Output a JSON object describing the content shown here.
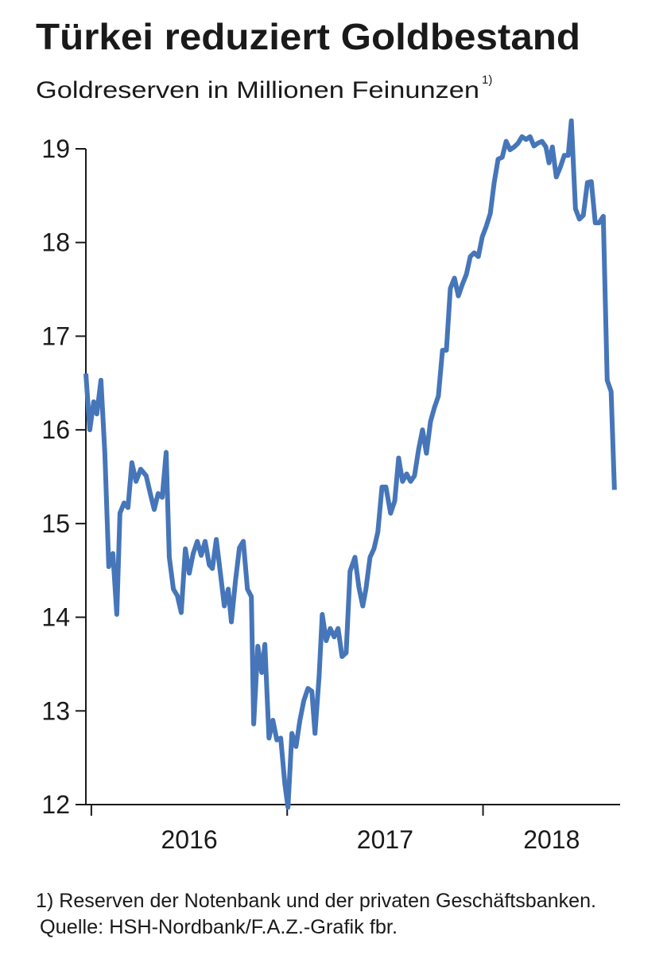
{
  "chart_data": {
    "type": "line",
    "title": "Türkei reduziert Goldbestand",
    "subtitle": "Goldreserven in Millionen Feinunzen",
    "subtitle_note": "1)",
    "footnote": "1) Reserven der Notenbank und der privaten Geschäftsbanken.",
    "source": "Quelle: HSH-Nordbank/F.A.Z.-Grafik fbr.",
    "x": [
      2015.972,
      2015.992,
      2016.012,
      2016.028,
      2016.049,
      2016.069,
      2016.089,
      2016.11,
      2016.13,
      2016.146,
      2016.167,
      2016.187,
      2016.207,
      2016.228,
      2016.252,
      2016.28,
      2016.301,
      2016.321,
      2016.341,
      2016.362,
      2016.382,
      2016.398,
      2016.419,
      2016.439,
      2016.459,
      2016.48,
      2016.5,
      2016.52,
      2016.541,
      2016.561,
      2016.581,
      2016.602,
      2016.618,
      2016.638,
      2016.659,
      2016.679,
      2016.699,
      2016.715,
      2016.736,
      2016.756,
      2016.776,
      2016.797,
      2016.817,
      2016.829,
      2016.85,
      2016.87,
      2016.886,
      2016.907,
      2016.927,
      2016.947,
      2016.967,
      2016.988,
      2017.004,
      2017.024,
      2017.045,
      2017.065,
      2017.085,
      2017.106,
      2017.126,
      2017.142,
      2017.163,
      2017.179,
      2017.199,
      2017.22,
      2017.24,
      2017.26,
      2017.28,
      2017.301,
      2017.321,
      2017.346,
      2017.366,
      2017.386,
      2017.402,
      2017.423,
      2017.443,
      2017.463,
      2017.484,
      2017.504,
      2017.528,
      2017.549,
      2017.569,
      2017.589,
      2017.61,
      2017.63,
      2017.65,
      2017.671,
      2017.691,
      2017.711,
      2017.732,
      2017.752,
      2017.772,
      2017.793,
      2017.813,
      2017.833,
      2017.854,
      2017.874,
      2017.894,
      2017.915,
      2017.935,
      2017.955,
      2017.976,
      2017.996,
      2018.016,
      2018.037,
      2018.057,
      2018.077,
      2018.098,
      2018.118,
      2018.138,
      2018.159,
      2018.179,
      2018.199,
      2018.22,
      2018.24,
      2018.26,
      2018.28,
      2018.301,
      2018.321,
      2018.337,
      2018.354,
      2018.374,
      2018.394,
      2018.415,
      2018.435,
      2018.451,
      2018.472,
      2018.492,
      2018.512,
      2018.533,
      2018.553,
      2018.573,
      2018.593,
      2018.614,
      2018.634,
      2018.654,
      2018.671
    ],
    "series": [
      {
        "color": "#4676b9",
        "values": [
          16.6,
          16.0,
          16.3,
          16.17,
          16.53,
          15.75,
          14.54,
          14.68,
          14.03,
          15.11,
          15.22,
          15.17,
          15.65,
          15.45,
          15.58,
          15.51,
          15.32,
          15.15,
          15.32,
          15.28,
          15.76,
          14.64,
          14.3,
          14.23,
          14.05,
          14.73,
          14.47,
          14.68,
          14.81,
          14.66,
          14.81,
          14.56,
          14.52,
          14.83,
          14.47,
          14.12,
          14.3,
          13.95,
          14.39,
          14.74,
          14.81,
          14.3,
          14.22,
          12.86,
          13.69,
          13.41,
          13.71,
          12.71,
          12.9,
          12.69,
          12.71,
          12.22,
          11.97,
          12.76,
          12.62,
          12.9,
          13.11,
          13.24,
          13.21,
          12.76,
          13.37,
          14.03,
          13.75,
          13.88,
          13.79,
          13.88,
          13.58,
          13.62,
          14.49,
          14.64,
          14.32,
          14.12,
          14.3,
          14.64,
          14.73,
          14.91,
          15.39,
          15.39,
          15.11,
          15.24,
          15.7,
          15.45,
          15.53,
          15.45,
          15.51,
          15.79,
          16.0,
          15.75,
          16.09,
          16.24,
          16.36,
          16.85,
          16.85,
          17.51,
          17.62,
          17.43,
          17.55,
          17.66,
          17.85,
          17.89,
          17.85,
          18.06,
          18.17,
          18.31,
          18.64,
          18.89,
          18.91,
          19.08,
          18.99,
          19.02,
          19.06,
          19.13,
          19.1,
          19.13,
          19.03,
          19.06,
          19.08,
          19.02,
          18.85,
          19.02,
          18.7,
          18.8,
          18.93,
          18.93,
          19.3,
          18.36,
          18.25,
          18.29,
          18.64,
          18.65,
          18.21,
          18.21,
          18.28,
          16.53,
          16.41,
          15.36
        ]
      }
    ],
    "xlim": [
      2015.972,
      2018.7
    ],
    "xticks": [
      2016,
      2017,
      2018
    ],
    "ylim": [
      12,
      19
    ],
    "yticks": [
      12,
      13,
      14,
      15,
      16,
      17,
      18,
      19
    ]
  }
}
